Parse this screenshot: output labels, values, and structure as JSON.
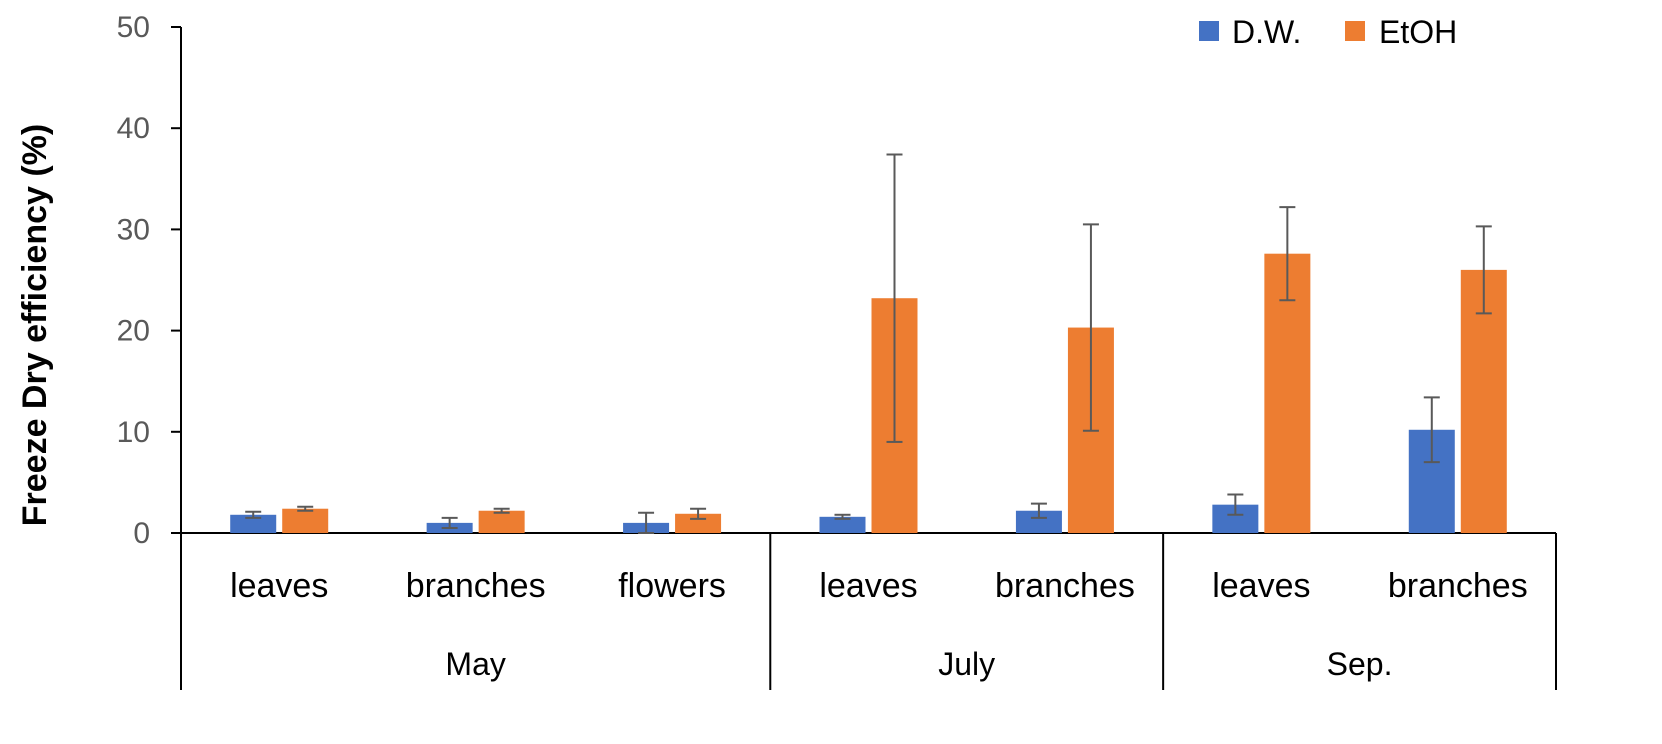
{
  "chart_data": {
    "type": "bar",
    "title": "",
    "xlabel": "",
    "ylabel": "Freeze Dry efficiency (%)",
    "ylim": [
      0,
      50
    ],
    "yticks": [
      "0",
      "10",
      "20",
      "30",
      "40",
      "50"
    ],
    "categories": [
      "leaves",
      "branches",
      "flowers",
      "leaves",
      "branches",
      "leaves",
      "branches"
    ],
    "groups": [
      {
        "label": "May",
        "count": 3
      },
      {
        "label": "July",
        "count": 2
      },
      {
        "label": "Sep.",
        "count": 2
      }
    ],
    "series": [
      {
        "name": "D.W.",
        "color": "#4472C4",
        "values": [
          1.8,
          1.0,
          1.0,
          1.6,
          2.2,
          2.8,
          10.2
        ],
        "errors": [
          0.3,
          0.5,
          1.0,
          0.2,
          0.7,
          1.0,
          3.2
        ]
      },
      {
        "name": "EtOH",
        "color": "#ED7D31",
        "values": [
          2.4,
          2.2,
          1.9,
          23.2,
          20.3,
          27.6,
          26.0
        ],
        "errors": [
          0.2,
          0.2,
          0.5,
          14.2,
          10.2,
          4.6,
          4.3
        ]
      }
    ],
    "legend_position": "top-right",
    "grid": false
  }
}
